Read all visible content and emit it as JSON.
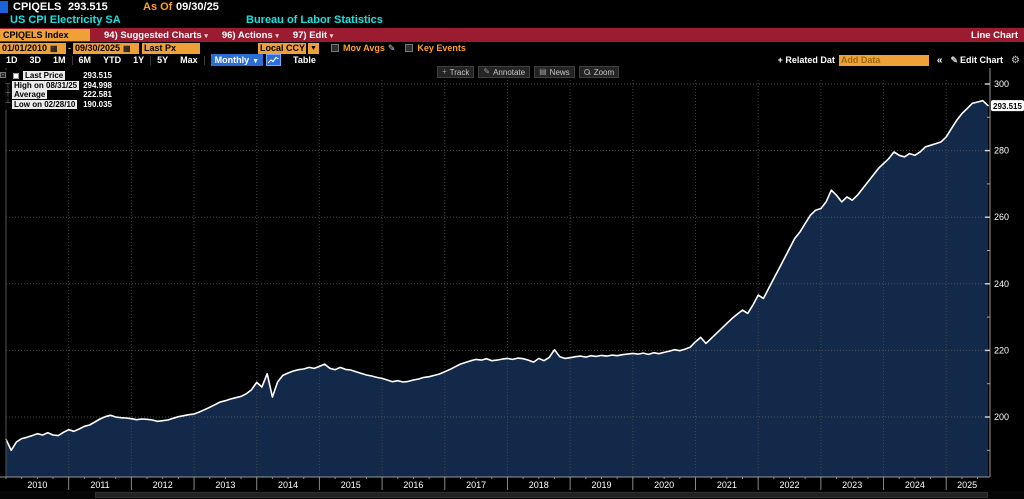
{
  "header": {
    "ticker": "CPIQELS",
    "last_value": "293.515",
    "as_of_label": "As Of",
    "as_of_date": "09/30/25",
    "security_name": "US CPI Electricity SA",
    "source": "Bureau of Labor Statistics"
  },
  "menu_bar": {
    "ticker_field": "CPIQELS Index",
    "items": [
      {
        "label": "94) Suggested Charts"
      },
      {
        "label": "96) Actions"
      },
      {
        "label": "97) Edit"
      }
    ],
    "right_label": "Line Chart"
  },
  "toolbar": {
    "date_from": "01/01/2010",
    "date_to": "09/30/2025",
    "price_field": "Last Px",
    "currency_field": "Local CCY",
    "mov_avgs_label": "Mov Avgs",
    "key_events_label": "Key Events"
  },
  "period_bar": {
    "ranges": [
      "1D",
      "3D",
      "1M",
      "6M",
      "YTD",
      "1Y",
      "5Y",
      "Max"
    ],
    "frequency": "Monthly",
    "table_label": "Table",
    "related_data_label": "+ Related Dat",
    "add_data_placeholder": "Add Data",
    "edit_chart_label": "Edit Chart"
  },
  "chart_tools": {
    "track": "Track",
    "annotate": "Annotate",
    "news": "News",
    "zoom": "Zoom"
  },
  "legend": {
    "rows": [
      {
        "marker": "series-swatch",
        "label": "Last Price",
        "value": "293.515"
      },
      {
        "marker": "high",
        "label": "High on 08/31/25",
        "value": "294.998"
      },
      {
        "marker": "average",
        "label": "Average",
        "value": "222.581"
      },
      {
        "marker": "low",
        "label": "Low on 02/28/10",
        "value": "190.035"
      }
    ]
  },
  "chart_data": {
    "type": "line",
    "title": "US CPI Electricity SA (CPIQELS Index)",
    "frequency": "monthly",
    "x_start": "2010-01",
    "x_end": "2025-09",
    "x_tick_years": [
      2010,
      2011,
      2012,
      2013,
      2014,
      2015,
      2016,
      2017,
      2018,
      2019,
      2020,
      2021,
      2022,
      2023,
      2024,
      2025
    ],
    "y_ticks": [
      200,
      220,
      240,
      260,
      280,
      300
    ],
    "y_minor_ticks": [
      190,
      210,
      230,
      250,
      270,
      290
    ],
    "ylim": [
      186,
      303
    ],
    "grid": true,
    "legend_position": "top-left",
    "last_price": 293.515,
    "last_price_label": "293.515",
    "stats": {
      "last": 293.515,
      "high": 294.998,
      "high_date": "08/31/25",
      "average": 222.581,
      "low": 190.035,
      "low_date": "02/28/10"
    },
    "series": [
      {
        "name": "Last Price",
        "color": "#ffffff",
        "fill": "#13294a",
        "values": [
          193.3,
          190.0,
          192.5,
          193.5,
          193.9,
          194.4,
          195.0,
          194.6,
          195.3,
          194.6,
          194.4,
          195.4,
          196.2,
          195.7,
          196.4,
          197.2,
          197.6,
          198.5,
          199.4,
          200.1,
          200.5,
          200.0,
          199.8,
          199.7,
          199.5,
          199.2,
          199.4,
          199.3,
          199.1,
          198.7,
          198.9,
          199.1,
          199.6,
          200.1,
          200.4,
          200.7,
          200.9,
          201.5,
          202.2,
          202.9,
          203.7,
          204.5,
          204.9,
          205.4,
          205.8,
          206.2,
          207.0,
          208.2,
          210.4,
          209.0,
          213.0,
          206.0,
          210.5,
          212.5,
          213.2,
          213.8,
          214.2,
          214.4,
          214.9,
          214.6,
          215.2,
          215.9,
          214.6,
          214.2,
          214.9,
          214.3,
          214.1,
          213.6,
          213.1,
          212.6,
          212.3,
          211.9,
          211.6,
          211.1,
          210.6,
          210.9,
          210.5,
          210.7,
          211.1,
          211.4,
          211.9,
          212.1,
          212.5,
          212.9,
          213.6,
          214.3,
          215.1,
          215.9,
          216.4,
          216.9,
          217.3,
          217.1,
          217.5,
          216.9,
          217.1,
          217.4,
          217.6,
          217.3,
          217.7,
          217.5,
          217.1,
          216.5,
          217.6,
          216.9,
          217.9,
          220.2,
          218.1,
          217.6,
          217.8,
          218.1,
          218.3,
          218.0,
          218.4,
          218.2,
          218.5,
          218.3,
          218.6,
          218.4,
          218.7,
          218.9,
          219.1,
          218.9,
          219.2,
          218.8,
          219.3,
          219.0,
          219.4,
          219.8,
          220.2,
          219.9,
          220.4,
          221.0,
          222.6,
          223.9,
          222.1,
          223.6,
          225.1,
          226.6,
          228.1,
          229.6,
          230.9,
          232.1,
          231.1,
          233.6,
          236.6,
          235.6,
          238.6,
          241.6,
          244.6,
          247.6,
          250.6,
          253.6,
          255.6,
          258.1,
          260.6,
          262.1,
          262.6,
          264.6,
          268.1,
          266.6,
          264.6,
          266.1,
          265.1,
          266.6,
          268.6,
          270.6,
          272.6,
          274.6,
          276.1,
          277.6,
          279.6,
          278.6,
          278.1,
          279.1,
          278.6,
          279.6,
          281.1,
          281.6,
          282.1,
          282.6,
          284.1,
          286.6,
          289.1,
          291.1,
          292.6,
          294.2,
          294.6,
          294.998,
          293.515
        ]
      }
    ]
  },
  "colors": {
    "background": "#000000",
    "menu_bar": "#9b1b30",
    "field_orange": "#efa036",
    "amber_text": "#ffa028",
    "cyan_text": "#17e2e2",
    "selected_blue": "#2b6fd6",
    "line": "#ffffff",
    "area_fill": "#13294a",
    "grid": "#555555"
  }
}
